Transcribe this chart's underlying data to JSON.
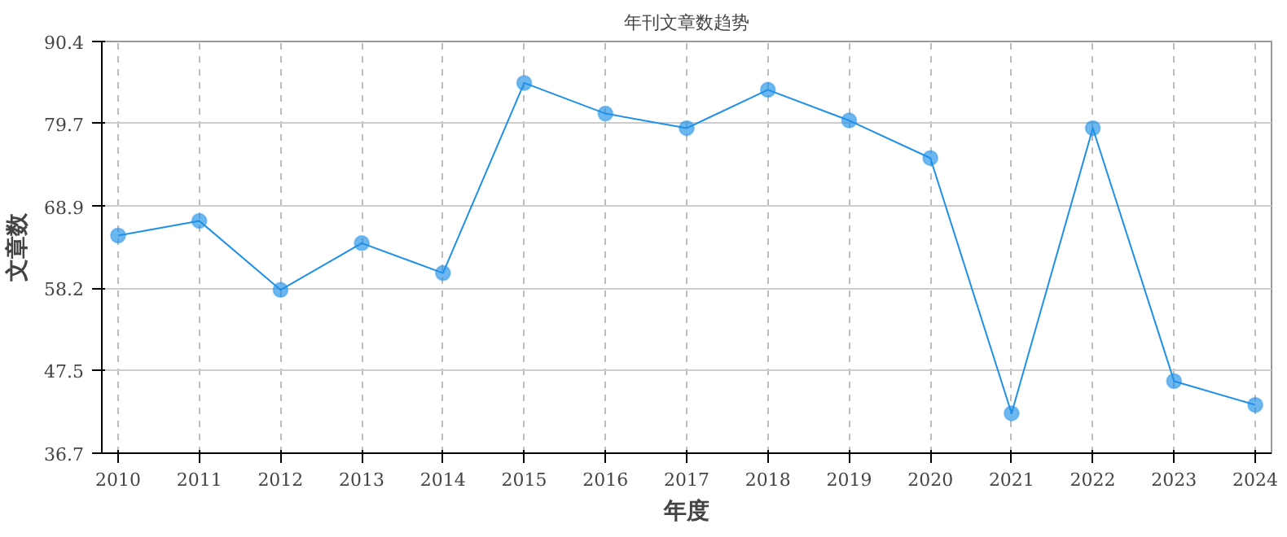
{
  "chart_data": {
    "type": "line",
    "title": "年刊文章数趋势",
    "xlabel": "年度",
    "ylabel": "文章数",
    "x": [
      2010,
      2011,
      2012,
      2013,
      2014,
      2015,
      2016,
      2017,
      2018,
      2019,
      2020,
      2021,
      2022,
      2023,
      2024
    ],
    "series": [
      {
        "color": "#1e90e8",
        "values": [
          65.1,
          67.0,
          58.0,
          64.1,
          60.2,
          85.0,
          81.0,
          79.1,
          84.1,
          80.1,
          75.2,
          41.9,
          79.1,
          46.1,
          43.0
        ]
      }
    ],
    "xlim": [
      2009.8,
      2024.2
    ],
    "xticks": [
      2010,
      2011,
      2012,
      2013,
      2014,
      2015,
      2016,
      2017,
      2018,
      2019,
      2020,
      2021,
      2022,
      2023,
      2024
    ],
    "ylim": [
      36.7,
      90.4
    ],
    "yticks": [
      36.7,
      47.5,
      58.2,
      68.9,
      79.7,
      90.4
    ],
    "grid": true,
    "marker": "circle",
    "line_style": "solid"
  }
}
